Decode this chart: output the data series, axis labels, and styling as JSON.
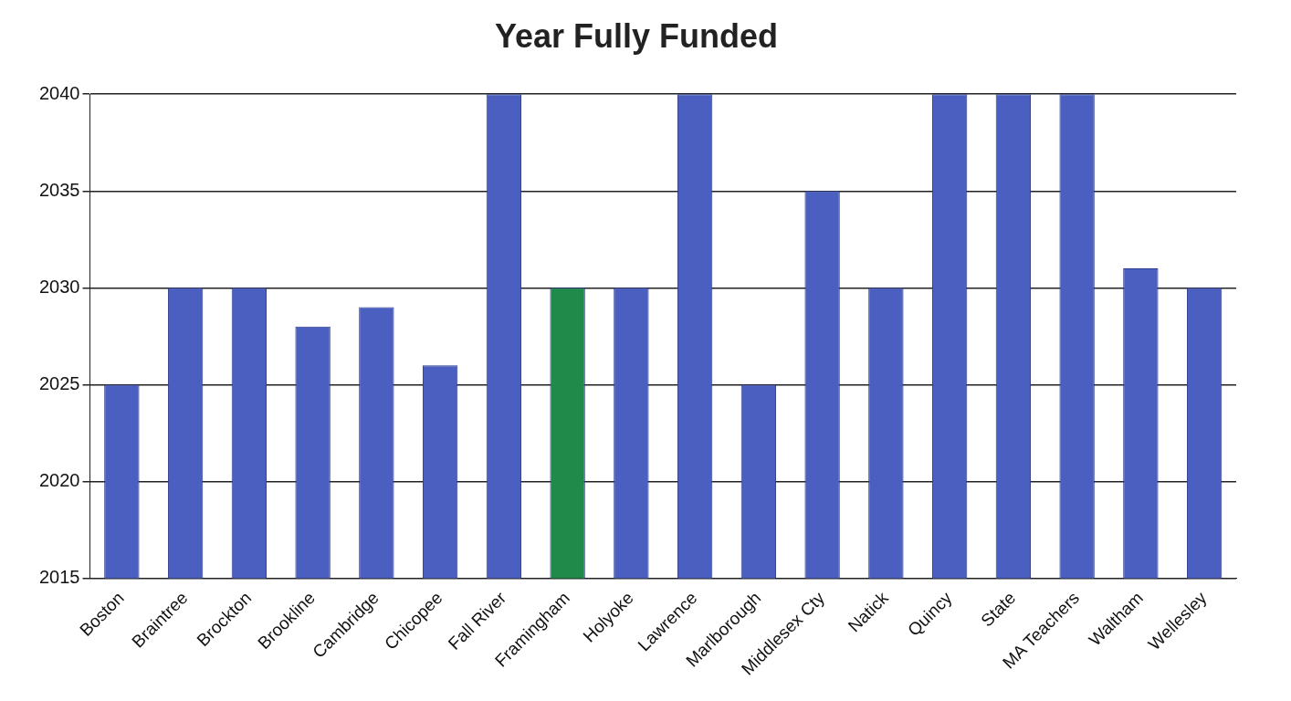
{
  "chart_data": {
    "type": "bar",
    "title": "Year Fully Funded",
    "categories": [
      "Boston",
      "Braintree",
      "Brockton",
      "Brookline",
      "Cambridge",
      "Chicopee",
      "Fall River",
      "Framingham",
      "Holyoke",
      "Lawrence",
      "Marlborough",
      "Middlesex Cty",
      "Natick",
      "Quincy",
      "State",
      "MA Teachers",
      "Waltham",
      "Wellesley"
    ],
    "values": [
      2025,
      2030,
      2030,
      2028,
      2029,
      2026,
      2040,
      2030,
      2030,
      2040,
      2025,
      2035,
      2030,
      2040,
      2040,
      2040,
      2031,
      2030
    ],
    "colors": [
      "#4a5fc0",
      "#4a5fc0",
      "#4a5fc0",
      "#4a5fc0",
      "#4a5fc0",
      "#4a5fc0",
      "#4a5fc0",
      "#1f8a4a",
      "#4a5fc0",
      "#4a5fc0",
      "#4a5fc0",
      "#4a5fc0",
      "#4a5fc0",
      "#4a5fc0",
      "#4a5fc0",
      "#4a5fc0",
      "#4a5fc0",
      "#4a5fc0"
    ],
    "ylim": [
      2015,
      2040
    ],
    "yticks": [
      2015,
      2020,
      2025,
      2030,
      2035,
      2040
    ],
    "grid": "y",
    "legend": false
  }
}
